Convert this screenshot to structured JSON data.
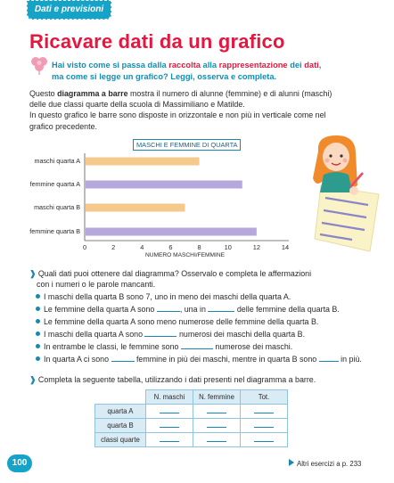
{
  "header": {
    "tab_label": "Dati e previsioni",
    "title": "Ricavare dati da un grafico"
  },
  "intro": {
    "p1": "Hai visto come si passa dalla ",
    "p2": "raccolta",
    "p3": " alla ",
    "p4": "rappresentazione",
    "p5": " dei ",
    "p6": "dati",
    "p7": ",",
    "line2": "ma come si legge un grafico? Leggi, osserva e completa."
  },
  "body": {
    "a": "Questo ",
    "b": "diagramma a barre",
    "c": " mostra il numero di alunne (femmine) e di alunni (maschi) delle due classi quarte della scuola di Massimiliano e Matilde.",
    "d": "In questo grafico le barre sono disposte in orizzontale e non più in verticale come nel grafico precedente."
  },
  "chart_data": {
    "type": "bar",
    "orientation": "horizontal",
    "title": "MASCHI E FEMMINE DI QUARTA",
    "xlabel": "NUMERO MASCHI/FEMMINE",
    "categories": [
      "maschi quarta A",
      "femmine quarta A",
      "maschi quarta B",
      "femmine quarta B"
    ],
    "values": [
      8,
      11,
      7,
      12
    ],
    "colors": [
      "#f5c98c",
      "#b6a8dd",
      "#f5c98c",
      "#b6a8dd"
    ],
    "xlim": [
      0,
      14
    ],
    "xticks": [
      "0",
      "2",
      "4",
      "6",
      "8",
      "10",
      "12",
      "14"
    ],
    "grid": false
  },
  "questions": {
    "q1_a": "Quali dati puoi ottenere dal diagramma? Osservalo e completa le affermazioni",
    "q1_b": "con i numeri o le parole mancanti.",
    "items": [
      "I maschi della quarta B sono 7, uno in meno dei maschi della quarta A.",
      "Le femmine della quarta A sono",
      "Le femmine della quarta A sono meno numerose delle femmine della quarta B.",
      "I maschi della quarta A sono",
      "In entrambe le classi, le femmine sono",
      "In quarta A ci sono"
    ],
    "item2_mid": ", una in",
    "item2_end": "delle femmine della quarta B.",
    "item4_end": "numerosi dei maschi della quarta B.",
    "item5_end": "numerose dei maschi.",
    "item6_mid": "femmine in più dei maschi, mentre in quarta B sono",
    "item6_end": "in più.",
    "q2": "Completa la seguente tabella, utilizzando i dati presenti nel diagramma a barre."
  },
  "table": {
    "headers": [
      "N. maschi",
      "N. femmine",
      "Tot."
    ],
    "rows": [
      "quarta A",
      "quarta B",
      "classi quarte"
    ]
  },
  "footer": {
    "page_number": "100",
    "more": "Altri esercizi a p. 233"
  }
}
